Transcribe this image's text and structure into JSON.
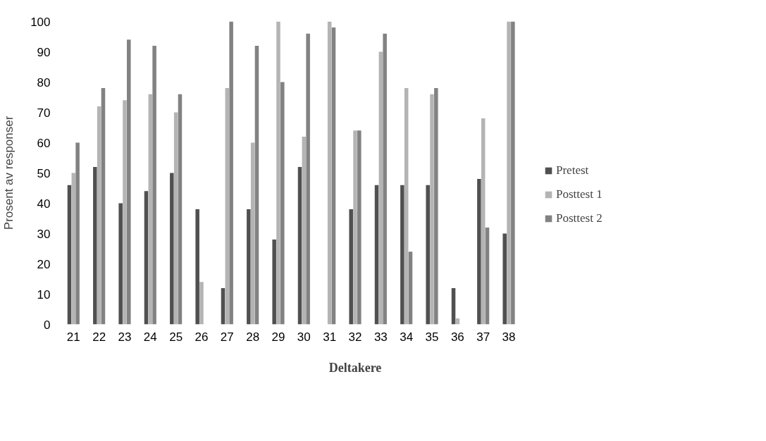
{
  "chart_data": {
    "type": "bar",
    "xlabel": "Deltakere",
    "ylabel": "Prosent av responser",
    "categories": [
      "21",
      "22",
      "23",
      "24",
      "25",
      "26",
      "27",
      "28",
      "29",
      "30",
      "31",
      "32",
      "33",
      "34",
      "35",
      "36",
      "37",
      "38"
    ],
    "series": [
      {
        "name": "Pretest",
        "color": "#505050",
        "values": [
          46,
          52,
          40,
          44,
          50,
          38,
          12,
          38,
          28,
          52,
          0,
          38,
          46,
          46,
          46,
          12,
          48,
          30
        ]
      },
      {
        "name": "Posttest 1",
        "color": "#b4b4b4",
        "values": [
          50,
          72,
          74,
          76,
          70,
          14,
          78,
          60,
          100,
          62,
          100,
          64,
          90,
          78,
          76,
          2,
          68,
          100
        ]
      },
      {
        "name": "Posttest 2",
        "color": "#828282",
        "values": [
          60,
          78,
          94,
          92,
          76,
          0,
          100,
          92,
          80,
          96,
          98,
          64,
          96,
          24,
          78,
          0,
          32,
          100
        ]
      }
    ],
    "ylim": [
      0,
      100
    ],
    "yticks": [
      0,
      10,
      20,
      30,
      40,
      50,
      60,
      70,
      80,
      90,
      100
    ],
    "grid": false,
    "legend": "right"
  }
}
